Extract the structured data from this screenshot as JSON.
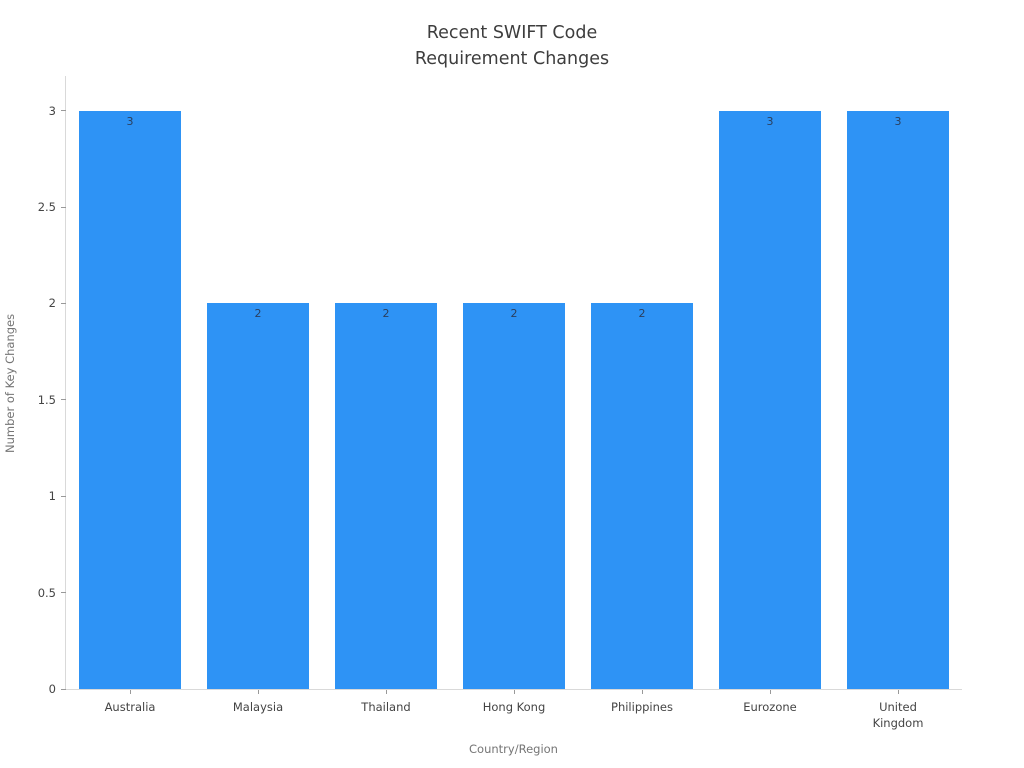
{
  "chart_data": {
    "type": "bar",
    "title": "Recent SWIFT Code Requirement Changes",
    "title_display": "Recent SWIFT Code\nRequirement Changes",
    "xlabel": "Country/Region",
    "ylabel": "Number of Key Changes",
    "categories": [
      "Australia",
      "Malaysia",
      "Thailand",
      "Hong Kong",
      "Philippines",
      "Eurozone",
      "United\nKingdom"
    ],
    "values": [
      3,
      2,
      2,
      2,
      2,
      3,
      3
    ],
    "value_labels": [
      "3",
      "2",
      "2",
      "2",
      "2",
      "3",
      "3"
    ],
    "ylim": [
      0,
      3.18
    ],
    "yticks": [
      0,
      0.5,
      1,
      1.5,
      2,
      2.5,
      3
    ],
    "grid": false,
    "legend": "none",
    "colors": {
      "bar": "#2e93f5",
      "title_text": "#3d3d3d",
      "axis_title_text": "#757575",
      "tick_text": "#444444",
      "bar_value_text": "#2a3f5f",
      "spine": "#d9d9d9",
      "background": "#ffffff"
    }
  }
}
